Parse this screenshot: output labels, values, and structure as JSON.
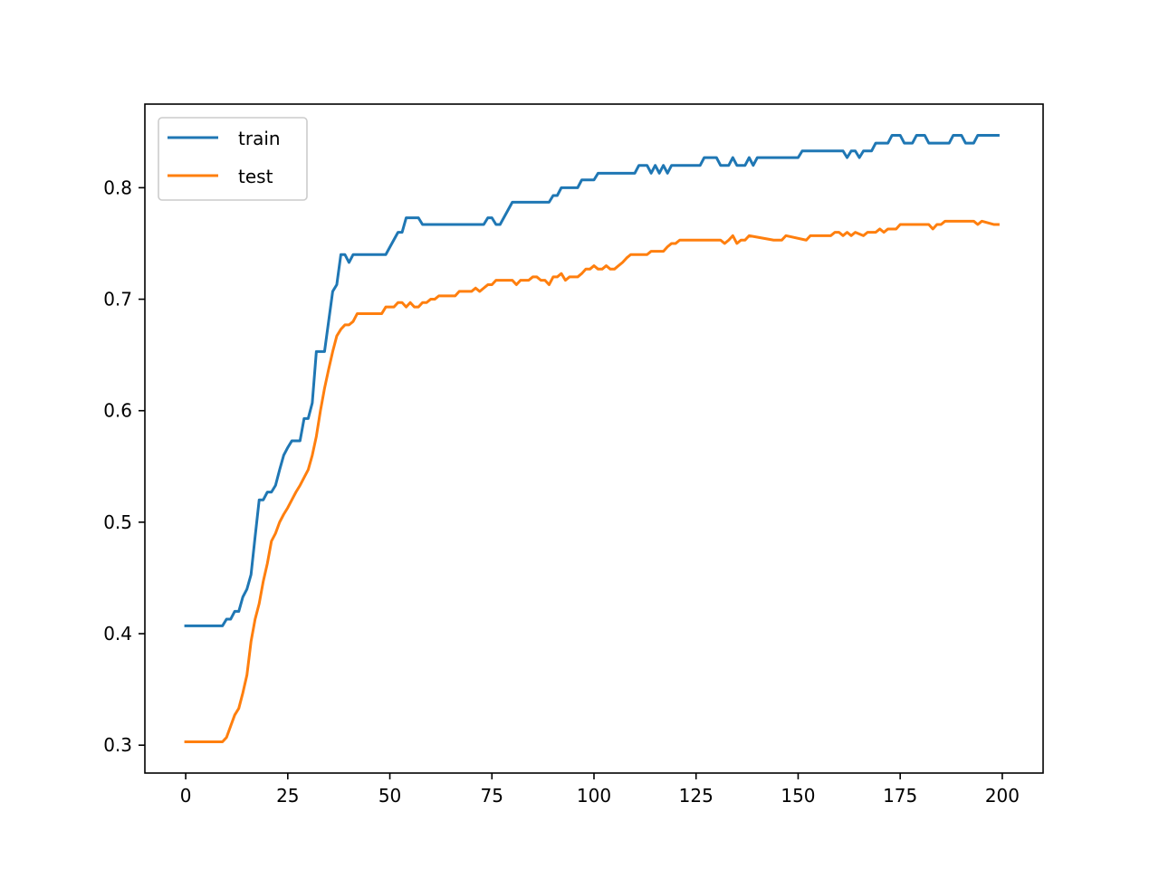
{
  "chart_data": {
    "type": "line",
    "title": "",
    "xlabel": "",
    "ylabel": "",
    "xlim": [
      -10,
      210
    ],
    "ylim": [
      0.275,
      0.875
    ],
    "xticks": [
      0,
      25,
      50,
      75,
      100,
      125,
      150,
      175,
      200
    ],
    "xtick_labels": [
      "0",
      "25",
      "50",
      "75",
      "100",
      "125",
      "150",
      "175",
      "200"
    ],
    "yticks": [
      0.3,
      0.4,
      0.5,
      0.6,
      0.7,
      0.8
    ],
    "ytick_labels": [
      "0.3",
      "0.4",
      "0.5",
      "0.6",
      "0.7",
      "0.8"
    ],
    "grid": false,
    "legend_position": "top-left",
    "series": [
      {
        "name": "train",
        "color": "#1f77b4",
        "points": [
          [
            0,
            0.407
          ],
          [
            9,
            0.407
          ],
          [
            10,
            0.413
          ],
          [
            11,
            0.413
          ],
          [
            12,
            0.42
          ],
          [
            13,
            0.42
          ],
          [
            14,
            0.433
          ],
          [
            15,
            0.44
          ],
          [
            16,
            0.453
          ],
          [
            17,
            0.487
          ],
          [
            18,
            0.52
          ],
          [
            19,
            0.52
          ],
          [
            20,
            0.527
          ],
          [
            21,
            0.527
          ],
          [
            22,
            0.533
          ],
          [
            23,
            0.547
          ],
          [
            24,
            0.56
          ],
          [
            25,
            0.567
          ],
          [
            26,
            0.573
          ],
          [
            28,
            0.573
          ],
          [
            29,
            0.593
          ],
          [
            30,
            0.593
          ],
          [
            31,
            0.607
          ],
          [
            32,
            0.653
          ],
          [
            34,
            0.653
          ],
          [
            35,
            0.68
          ],
          [
            36,
            0.707
          ],
          [
            37,
            0.713
          ],
          [
            38,
            0.74
          ],
          [
            39,
            0.74
          ],
          [
            40,
            0.733
          ],
          [
            41,
            0.74
          ],
          [
            49,
            0.74
          ],
          [
            52,
            0.76
          ],
          [
            53,
            0.76
          ],
          [
            54,
            0.773
          ],
          [
            57,
            0.773
          ],
          [
            58,
            0.767
          ],
          [
            73,
            0.767
          ],
          [
            74,
            0.773
          ],
          [
            75,
            0.773
          ],
          [
            76,
            0.767
          ],
          [
            77,
            0.767
          ],
          [
            80,
            0.787
          ],
          [
            89,
            0.787
          ],
          [
            90,
            0.793
          ],
          [
            91,
            0.793
          ],
          [
            92,
            0.8
          ],
          [
            96,
            0.8
          ],
          [
            97,
            0.807
          ],
          [
            100,
            0.807
          ],
          [
            101,
            0.813
          ],
          [
            110,
            0.813
          ],
          [
            111,
            0.82
          ],
          [
            113,
            0.82
          ],
          [
            114,
            0.813
          ],
          [
            115,
            0.82
          ],
          [
            116,
            0.813
          ],
          [
            117,
            0.82
          ],
          [
            118,
            0.813
          ],
          [
            119,
            0.82
          ],
          [
            126,
            0.82
          ],
          [
            127,
            0.827
          ],
          [
            130,
            0.827
          ],
          [
            131,
            0.82
          ],
          [
            133,
            0.82
          ],
          [
            134,
            0.827
          ],
          [
            135,
            0.82
          ],
          [
            137,
            0.82
          ],
          [
            138,
            0.827
          ],
          [
            139,
            0.82
          ],
          [
            140,
            0.827
          ],
          [
            150,
            0.827
          ],
          [
            151,
            0.833
          ],
          [
            161,
            0.833
          ],
          [
            162,
            0.827
          ],
          [
            163,
            0.833
          ],
          [
            164,
            0.833
          ],
          [
            165,
            0.827
          ],
          [
            166,
            0.833
          ],
          [
            168,
            0.833
          ],
          [
            169,
            0.84
          ],
          [
            172,
            0.84
          ],
          [
            173,
            0.847
          ],
          [
            175,
            0.847
          ],
          [
            176,
            0.84
          ],
          [
            178,
            0.84
          ],
          [
            179,
            0.847
          ],
          [
            181,
            0.847
          ],
          [
            182,
            0.84
          ],
          [
            187,
            0.84
          ],
          [
            188,
            0.847
          ],
          [
            190,
            0.847
          ],
          [
            191,
            0.84
          ],
          [
            193,
            0.84
          ],
          [
            194,
            0.847
          ],
          [
            199,
            0.847
          ]
        ]
      },
      {
        "name": "test",
        "color": "#ff7f0e",
        "points": [
          [
            0,
            0.303
          ],
          [
            9,
            0.303
          ],
          [
            10,
            0.307
          ],
          [
            11,
            0.317
          ],
          [
            12,
            0.327
          ],
          [
            13,
            0.333
          ],
          [
            14,
            0.347
          ],
          [
            15,
            0.363
          ],
          [
            16,
            0.393
          ],
          [
            17,
            0.413
          ],
          [
            18,
            0.427
          ],
          [
            19,
            0.447
          ],
          [
            20,
            0.463
          ],
          [
            21,
            0.483
          ],
          [
            22,
            0.49
          ],
          [
            23,
            0.5
          ],
          [
            24,
            0.507
          ],
          [
            25,
            0.513
          ],
          [
            26,
            0.52
          ],
          [
            27,
            0.527
          ],
          [
            28,
            0.533
          ],
          [
            29,
            0.54
          ],
          [
            30,
            0.547
          ],
          [
            31,
            0.56
          ],
          [
            32,
            0.577
          ],
          [
            33,
            0.6
          ],
          [
            34,
            0.62
          ],
          [
            35,
            0.637
          ],
          [
            36,
            0.653
          ],
          [
            37,
            0.667
          ],
          [
            38,
            0.673
          ],
          [
            39,
            0.677
          ],
          [
            40,
            0.677
          ],
          [
            41,
            0.68
          ],
          [
            42,
            0.687
          ],
          [
            48,
            0.687
          ],
          [
            49,
            0.693
          ],
          [
            50,
            0.693
          ],
          [
            51,
            0.693
          ],
          [
            52,
            0.697
          ],
          [
            53,
            0.697
          ],
          [
            54,
            0.693
          ],
          [
            55,
            0.697
          ],
          [
            56,
            0.693
          ],
          [
            57,
            0.693
          ],
          [
            58,
            0.697
          ],
          [
            59,
            0.697
          ],
          [
            60,
            0.7
          ],
          [
            61,
            0.7
          ],
          [
            62,
            0.703
          ],
          [
            66,
            0.703
          ],
          [
            67,
            0.707
          ],
          [
            70,
            0.707
          ],
          [
            71,
            0.71
          ],
          [
            72,
            0.707
          ],
          [
            73,
            0.71
          ],
          [
            74,
            0.713
          ],
          [
            75,
            0.713
          ],
          [
            76,
            0.717
          ],
          [
            80,
            0.717
          ],
          [
            81,
            0.713
          ],
          [
            82,
            0.717
          ],
          [
            84,
            0.717
          ],
          [
            85,
            0.72
          ],
          [
            86,
            0.72
          ],
          [
            87,
            0.717
          ],
          [
            88,
            0.717
          ],
          [
            89,
            0.713
          ],
          [
            90,
            0.72
          ],
          [
            91,
            0.72
          ],
          [
            92,
            0.723
          ],
          [
            93,
            0.717
          ],
          [
            94,
            0.72
          ],
          [
            96,
            0.72
          ],
          [
            97,
            0.723
          ],
          [
            98,
            0.727
          ],
          [
            99,
            0.727
          ],
          [
            100,
            0.73
          ],
          [
            101,
            0.727
          ],
          [
            102,
            0.727
          ],
          [
            103,
            0.73
          ],
          [
            104,
            0.727
          ],
          [
            105,
            0.727
          ],
          [
            106,
            0.73
          ],
          [
            107,
            0.733
          ],
          [
            108,
            0.737
          ],
          [
            109,
            0.74
          ],
          [
            113,
            0.74
          ],
          [
            114,
            0.743
          ],
          [
            117,
            0.743
          ],
          [
            118,
            0.747
          ],
          [
            119,
            0.75
          ],
          [
            120,
            0.75
          ],
          [
            121,
            0.753
          ],
          [
            131,
            0.753
          ],
          [
            132,
            0.75
          ],
          [
            133,
            0.753
          ],
          [
            134,
            0.757
          ],
          [
            135,
            0.75
          ],
          [
            136,
            0.753
          ],
          [
            137,
            0.753
          ],
          [
            138,
            0.757
          ],
          [
            144,
            0.753
          ],
          [
            146,
            0.753
          ],
          [
            147,
            0.757
          ],
          [
            152,
            0.753
          ],
          [
            153,
            0.757
          ],
          [
            158,
            0.757
          ],
          [
            159,
            0.76
          ],
          [
            160,
            0.76
          ],
          [
            161,
            0.757
          ],
          [
            162,
            0.76
          ],
          [
            163,
            0.757
          ],
          [
            164,
            0.76
          ],
          [
            166,
            0.757
          ],
          [
            167,
            0.76
          ],
          [
            169,
            0.76
          ],
          [
            170,
            0.763
          ],
          [
            171,
            0.76
          ],
          [
            172,
            0.763
          ],
          [
            174,
            0.763
          ],
          [
            175,
            0.767
          ],
          [
            182,
            0.767
          ],
          [
            183,
            0.763
          ],
          [
            184,
            0.767
          ],
          [
            185,
            0.767
          ],
          [
            186,
            0.77
          ],
          [
            193,
            0.77
          ],
          [
            194,
            0.767
          ],
          [
            195,
            0.77
          ],
          [
            198,
            0.767
          ],
          [
            199,
            0.767
          ]
        ]
      }
    ]
  }
}
